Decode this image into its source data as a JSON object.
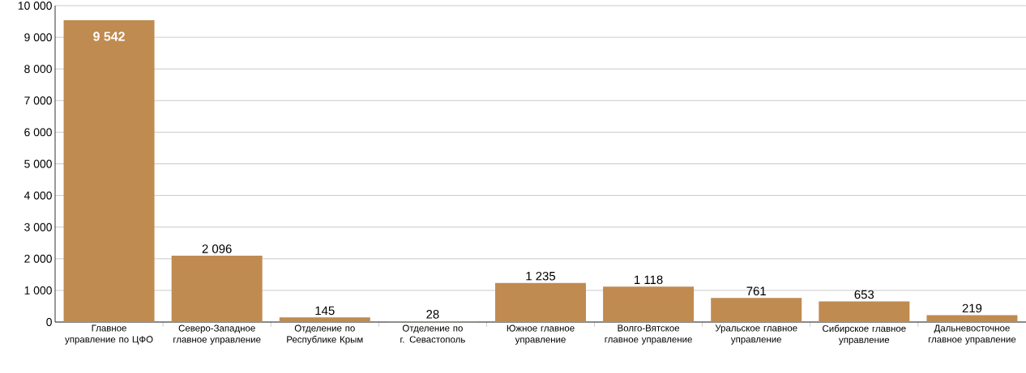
{
  "chart_data": {
    "type": "bar",
    "categories": [
      "Главное управление по ЦФО",
      "Северо-Западное главное управление",
      "Отделение по Республике Крым",
      "Отделение по г. Севастополь",
      "Южное главное управление",
      "Волго-Вятское главное управление",
      "Уральское главное управление",
      "Сибирское главное управление",
      "Дальневосточное главное управление"
    ],
    "values": [
      9542,
      2096,
      145,
      28,
      1235,
      1118,
      761,
      653,
      219
    ],
    "value_labels": [
      "9 542",
      "2 096",
      "145",
      "28",
      "1 235",
      "1 118",
      "761",
      "653",
      "219"
    ],
    "color": "#c08b50",
    "ylim": [
      0,
      10000
    ],
    "yticks": [
      {
        "value": 0,
        "label": "0"
      },
      {
        "value": 1000,
        "label": "1 000"
      },
      {
        "value": 2000,
        "label": "2 000"
      },
      {
        "value": 3000,
        "label": "3 000"
      },
      {
        "value": 4000,
        "label": "4 000"
      },
      {
        "value": 5000,
        "label": "5 000"
      },
      {
        "value": 6000,
        "label": "6 000"
      },
      {
        "value": 7000,
        "label": "7 000"
      },
      {
        "value": 8000,
        "label": "8 000"
      },
      {
        "value": 9000,
        "label": "9 000"
      },
      {
        "value": 10000,
        "label": "10 000"
      }
    ],
    "grid": "y"
  }
}
